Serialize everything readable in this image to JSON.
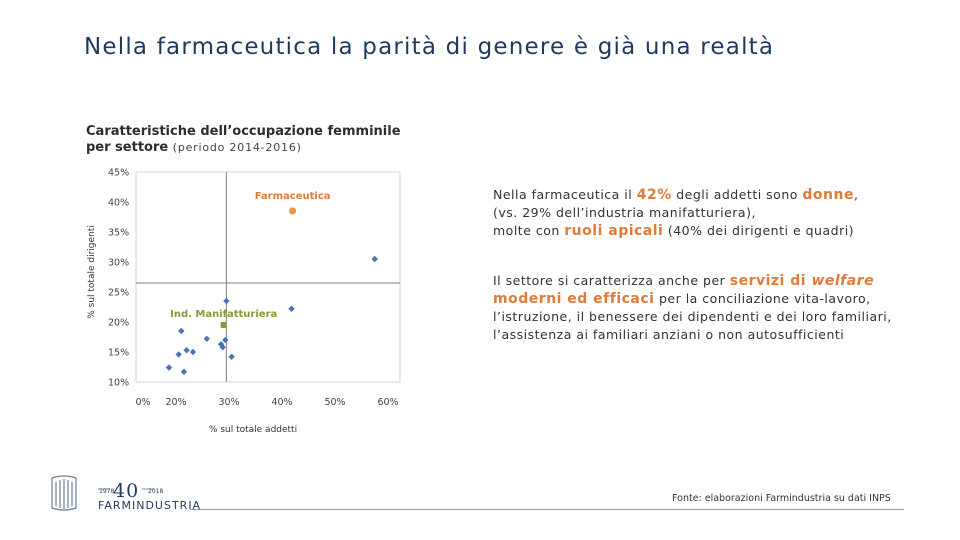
{
  "header": {
    "title": "Nella farmaceutica la parità di genere è già una realtà"
  },
  "chart_title": {
    "line1": "Caratteristiche dell’occupazione femminile",
    "line2": "per settore",
    "period": "(periodo 2014-2016)"
  },
  "colors": {
    "points": "#4a74b4",
    "highlight": "#e8994c",
    "manufacturing": "#8a9a3a",
    "title": "#1f3a5f",
    "accent": "#e07b39"
  },
  "chart_data": {
    "type": "scatter",
    "xlabel": "% sul totale addetti",
    "ylabel": "% sul totale dirigenti",
    "xlim": [
      0,
      60
    ],
    "ylim": [
      10,
      45
    ],
    "x_ticks": [
      "0%",
      "20%",
      "30%",
      "40%",
      "50%",
      "60%"
    ],
    "y_ticks": [
      "45%",
      "40%",
      "35%",
      "30%",
      "25%",
      "20%",
      "15%",
      "10%"
    ],
    "reference_lines": {
      "x": 29.5,
      "y": 26.5
    },
    "highlight_points": [
      {
        "label": "Farmaceutica",
        "x": 42,
        "y": 38.5,
        "color": "#e8994c"
      },
      {
        "label": "Ind. Manifatturiera",
        "x": 29,
        "y": 19.5,
        "color": "#8a9a3a"
      }
    ],
    "points": [
      {
        "x": 57.5,
        "y": 30.5
      },
      {
        "x": 29.5,
        "y": 23.5
      },
      {
        "x": 41.8,
        "y": 22.2
      },
      {
        "x": 21.0,
        "y": 18.5
      },
      {
        "x": 25.8,
        "y": 17.2
      },
      {
        "x": 29.3,
        "y": 17.0
      },
      {
        "x": 28.5,
        "y": 16.3
      },
      {
        "x": 28.8,
        "y": 15.8
      },
      {
        "x": 22.0,
        "y": 15.3
      },
      {
        "x": 23.2,
        "y": 15.0
      },
      {
        "x": 20.5,
        "y": 14.6
      },
      {
        "x": 30.5,
        "y": 14.2
      },
      {
        "x": 16.5,
        "y": 12.4
      },
      {
        "x": 21.5,
        "y": 11.7
      }
    ]
  },
  "right_text": {
    "p1_a": "Nella farmaceutica il ",
    "p1_pct": "42%",
    "p1_b": " degli addetti sono ",
    "p1_donne": "donne",
    "p1_c": ",",
    "p1_line2": "(vs. 29% dell’industria manifatturiera),",
    "p1_line3a": "molte con ",
    "p1_ruoli": "ruoli apicali",
    "p1_line3b": " (40% dei dirigenti e quadri)",
    "p2_a": "Il settore si caratterizza anche per ",
    "p2_servizi": "servizi di ",
    "p2_welfare": "welfare",
    "p2_moderni": "moderni ed efficaci",
    "p2_b": " per la conciliazione vita-lavoro,",
    "p2_line3": "l’istruzione, il benessere dei dipendenti e dei loro familiari,",
    "p2_line4": "l’assistenza ai familiari anziani o non autosufficienti"
  },
  "footer": {
    "source": "Fonte: elaborazioni Farmindustria su dati INPS",
    "logo_name": "FARMINDUSTRIA",
    "logo_number": "40",
    "logo_year_start": "1978",
    "logo_year_end": "2018"
  }
}
